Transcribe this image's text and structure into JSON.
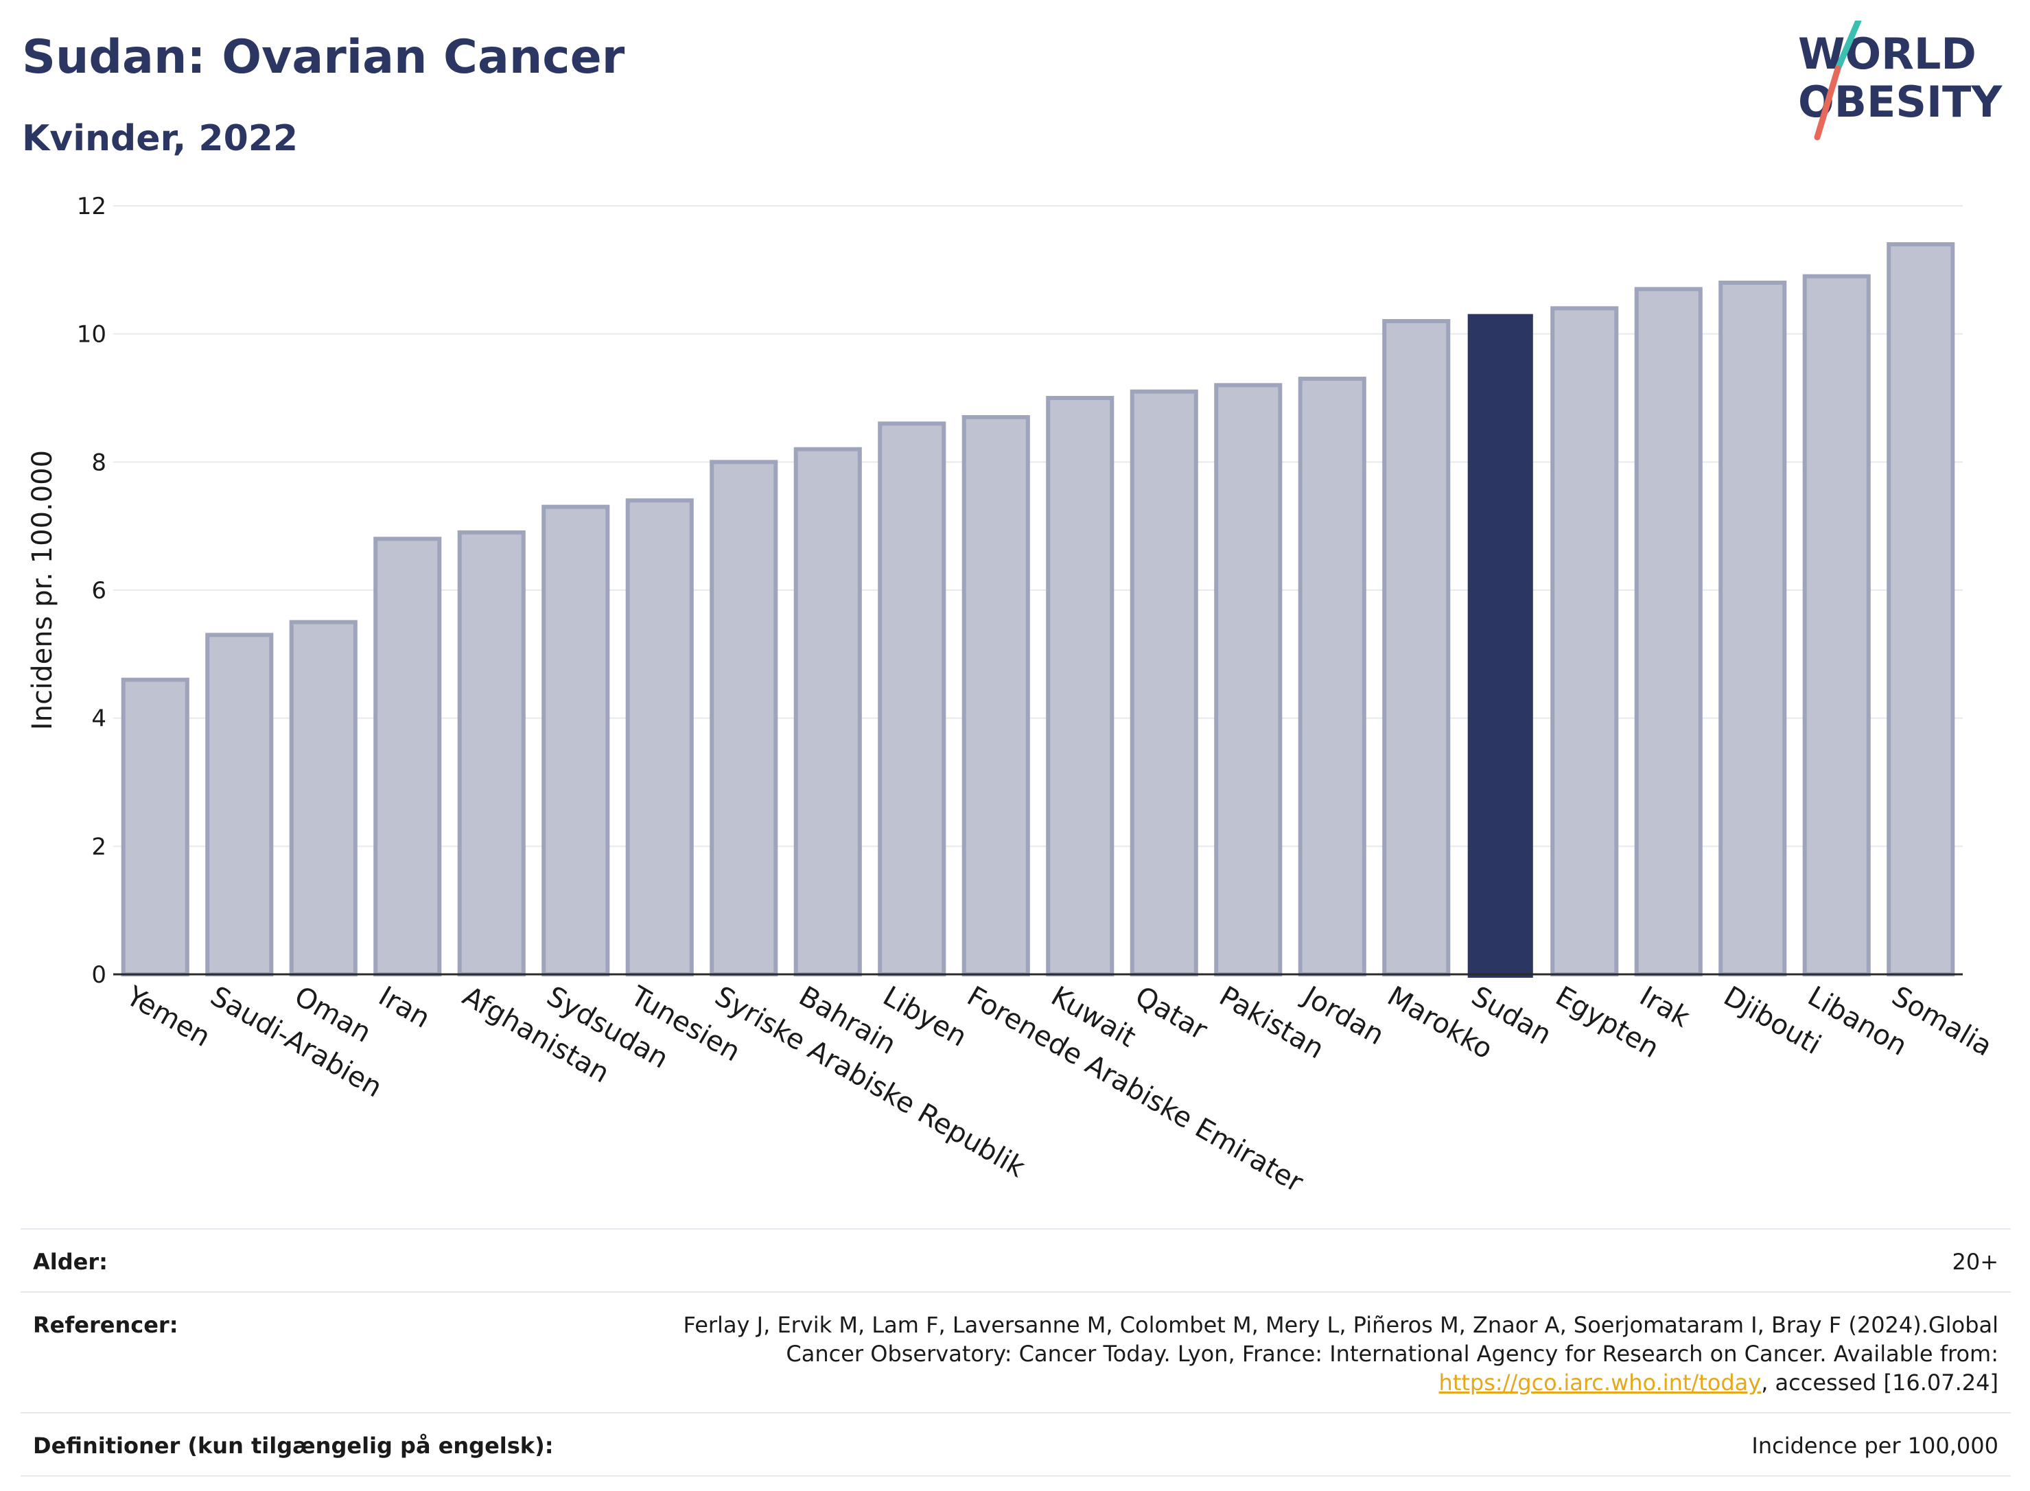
{
  "header": {
    "title": "Sudan: Ovarian Cancer",
    "subtitle": "Kvinder, 2022"
  },
  "logo": {
    "line1": "WORLD",
    "line2": "OBESITY"
  },
  "colors": {
    "highlight": "#2b3663",
    "bar_fill": "#bfc2d1",
    "bar_stroke": "#9ea4bc",
    "title": "#2b3663",
    "link": "#e6a817",
    "logo_teal": "#3bbfb0",
    "logo_red": "#e8685a"
  },
  "chart_data": {
    "type": "bar",
    "title": "Sudan: Ovarian Cancer",
    "subtitle": "Kvinder, 2022",
    "xlabel": "",
    "ylabel": "Incidens pr. 100.000",
    "ylim": [
      0,
      12
    ],
    "yticks": [
      0,
      2,
      4,
      6,
      8,
      10,
      12
    ],
    "grid": true,
    "highlight": "Sudan",
    "categories": [
      "Yemen",
      "Saudi-Arabien",
      "Oman",
      "Iran",
      "Afghanistan",
      "Sydsudan",
      "Tunesien",
      "Syriske Arabiske Republik",
      "Bahrain",
      "Libyen",
      "Forenede Arabiske Emirater",
      "Kuwait",
      "Qatar",
      "Pakistan",
      "Jordan",
      "Marokko",
      "Sudan",
      "Egypten",
      "Irak",
      "Djibouti",
      "Libanon",
      "Somalia"
    ],
    "values": [
      4.6,
      5.3,
      5.5,
      6.8,
      6.9,
      7.3,
      7.4,
      8.0,
      8.2,
      8.6,
      8.7,
      9.0,
      9.1,
      9.2,
      9.3,
      10.2,
      10.3,
      10.4,
      10.7,
      10.8,
      10.9,
      11.4
    ]
  },
  "info": {
    "age_label": "Alder:",
    "age_value": "20+",
    "ref_label": "Referencer:",
    "ref_text_1": "Ferlay J, Ervik M, Lam F, Laversanne M, Colombet M, Mery L, Piñeros M, Znaor A, Soerjomataram I, Bray F (2024).Global Cancer Observatory: Cancer Today. Lyon, France: International Agency for Research on Cancer. Available from: ",
    "ref_link": "https://gco.iarc.who.int/today",
    "ref_text_2": ", accessed [16.07.24]",
    "def_label": "Definitioner (kun tilgængelig på engelsk):",
    "def_value": "Incidence per 100,000"
  }
}
